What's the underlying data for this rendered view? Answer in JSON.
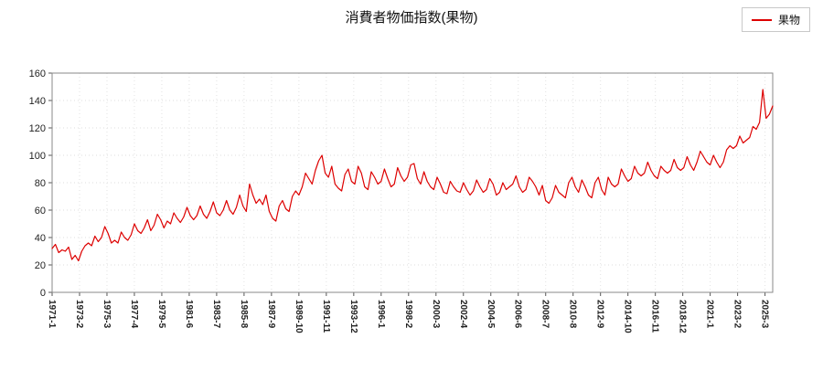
{
  "title": "消費者物価指数(果物)",
  "legend": {
    "label": "果物",
    "color": "#dd0000"
  },
  "chart_data": {
    "type": "line",
    "title": "消費者物価指数(果物)",
    "xlabel": "",
    "ylabel": "",
    "ylim": [
      0,
      160
    ],
    "y_ticks": [
      0,
      20,
      40,
      60,
      80,
      100,
      120,
      140,
      160
    ],
    "grid": true,
    "legend_position": "top-right",
    "x_start": "1971-01",
    "interval_months": 3,
    "x_tick_interval_months": 25,
    "x_tick_labels": [
      "1971-1",
      "1973-2",
      "1975-3",
      "1977-4",
      "1979-5",
      "1981-6",
      "1983-7",
      "1985-8",
      "1987-9",
      "1989-10",
      "1991-11",
      "1993-12",
      "1996-1",
      "1998-2",
      "2000-3",
      "2002-4",
      "2004-5",
      "2006-6",
      "2008-7",
      "2010-8",
      "2012-9",
      "2014-10",
      "2016-11",
      "2018-12",
      "2021-1",
      "2023-2",
      "2025-3"
    ],
    "series": [
      {
        "name": "果物",
        "color": "#dd0000",
        "values": [
          32,
          35,
          29,
          31,
          30,
          33,
          24,
          27,
          23,
          30,
          34,
          36,
          34,
          41,
          37,
          40,
          48,
          43,
          36,
          38,
          36,
          44,
          40,
          38,
          42,
          50,
          45,
          43,
          47,
          53,
          45,
          49,
          57,
          53,
          47,
          52,
          50,
          58,
          54,
          51,
          55,
          62,
          56,
          53,
          56,
          63,
          57,
          54,
          59,
          66,
          58,
          56,
          60,
          67,
          60,
          57,
          62,
          71,
          63,
          59,
          79,
          71,
          65,
          68,
          64,
          71,
          59,
          54,
          52,
          63,
          67,
          61,
          59,
          70,
          74,
          71,
          77,
          87,
          83,
          79,
          89,
          96,
          100,
          87,
          84,
          92,
          79,
          76,
          74,
          86,
          90,
          81,
          79,
          92,
          87,
          77,
          75,
          88,
          84,
          79,
          81,
          90,
          83,
          77,
          79,
          91,
          85,
          81,
          84,
          93,
          94,
          83,
          79,
          88,
          81,
          77,
          75,
          84,
          79,
          73,
          72,
          81,
          77,
          74,
          73,
          80,
          75,
          71,
          74,
          82,
          77,
          73,
          75,
          83,
          79,
          71,
          73,
          80,
          75,
          77,
          79,
          85,
          77,
          73,
          75,
          84,
          81,
          77,
          71,
          78,
          67,
          65,
          69,
          78,
          73,
          71,
          69,
          80,
          84,
          77,
          73,
          82,
          77,
          71,
          69,
          80,
          84,
          75,
          71,
          84,
          79,
          77,
          79,
          90,
          85,
          81,
          83,
          92,
          87,
          85,
          87,
          95,
          89,
          85,
          83,
          92,
          89,
          87,
          89,
          97,
          91,
          89,
          91,
          99,
          93,
          89,
          95,
          103,
          99,
          95,
          93,
          100,
          95,
          91,
          95,
          104,
          107,
          105,
          107,
          114,
          109,
          111,
          113,
          121,
          119,
          124,
          148,
          127,
          130,
          136
        ]
      }
    ]
  }
}
